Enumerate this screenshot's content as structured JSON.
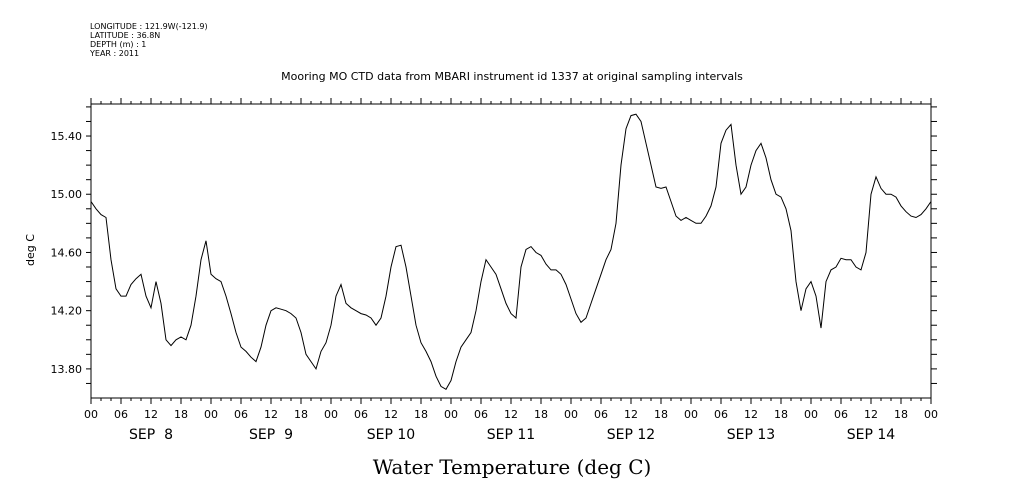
{
  "metadata": {
    "longitude": "LONGITUDE : 121.9W(-121.9)",
    "latitude": "LATITUDE : 36.8N",
    "depth": "DEPTH (m) : 1",
    "year": "YEAR : 2011"
  },
  "chart_data": {
    "type": "line",
    "title": "Mooring MO CTD data from MBARI instrument id 1337 at original sampling intervals",
    "xlabel": "Water Temperature (deg C)",
    "ylabel": "deg C",
    "xlim_hours": [
      0,
      168
    ],
    "ylim": [
      13.6,
      15.62
    ],
    "yticks": [
      13.8,
      14.2,
      14.6,
      15.0,
      15.4
    ],
    "ytick_labels": [
      "13.80",
      "14.20",
      "14.60",
      "15.00",
      "15.40"
    ],
    "hour_ticks": [
      "00",
      "06",
      "12",
      "18",
      "00",
      "06",
      "12",
      "18",
      "00",
      "06",
      "12",
      "18",
      "00",
      "06",
      "12",
      "18",
      "00",
      "06",
      "12",
      "18",
      "00",
      "06",
      "12",
      "18",
      "00",
      "06",
      "12",
      "18",
      "00"
    ],
    "day_labels": [
      "SEP  8",
      "SEP  9",
      "SEP 10",
      "SEP 11",
      "SEP 12",
      "SEP 13",
      "SEP 14"
    ],
    "series": [
      {
        "x": [
          0,
          1,
          2,
          3,
          4,
          5,
          6,
          7,
          8,
          9,
          10,
          11,
          12,
          13,
          14,
          15,
          16,
          17,
          18,
          19,
          20,
          21,
          22,
          23,
          24,
          25,
          26,
          27,
          28,
          29,
          30,
          31,
          32,
          33,
          34,
          35,
          36,
          37,
          38,
          39,
          40,
          41,
          42,
          43,
          44,
          45,
          46,
          47,
          48,
          49,
          50,
          51,
          52,
          53,
          54,
          55,
          56,
          57,
          58,
          59,
          60,
          61,
          62,
          63,
          64,
          65,
          66,
          67,
          68,
          69,
          70,
          71,
          72,
          73,
          74,
          75,
          76,
          77,
          78,
          79,
          80,
          81,
          82,
          83,
          84,
          85,
          86,
          87,
          88,
          89,
          90,
          91,
          92,
          93,
          94,
          95,
          96,
          97,
          98,
          99,
          100,
          101,
          102,
          103,
          104,
          105,
          106,
          107,
          108,
          109,
          110,
          111,
          112,
          113,
          114,
          115,
          116,
          117,
          118,
          119,
          120,
          121,
          122,
          123,
          124,
          125,
          126,
          127,
          128,
          129,
          130,
          131,
          132,
          133,
          134,
          135,
          136,
          137,
          138,
          139,
          140,
          141,
          142,
          143,
          144,
          145,
          146,
          147,
          148,
          149,
          150,
          151,
          152,
          153,
          154,
          155,
          156,
          157,
          158,
          159,
          160,
          161,
          162,
          163,
          164,
          165,
          166,
          167,
          168
        ],
        "y": [
          14.95,
          14.9,
          14.86,
          14.84,
          14.55,
          14.35,
          14.3,
          14.3,
          14.38,
          14.42,
          14.45,
          14.3,
          14.22,
          14.4,
          14.25,
          14.0,
          13.96,
          14.0,
          14.02,
          14.0,
          14.1,
          14.3,
          14.55,
          14.68,
          14.45,
          14.42,
          14.4,
          14.3,
          14.18,
          14.05,
          13.95,
          13.92,
          13.88,
          13.85,
          13.95,
          14.1,
          14.2,
          14.22,
          14.21,
          14.2,
          14.18,
          14.15,
          14.05,
          13.9,
          13.85,
          13.8,
          13.92,
          13.98,
          14.1,
          14.3,
          14.38,
          14.25,
          14.22,
          14.2,
          14.18,
          14.17,
          14.15,
          14.1,
          14.15,
          14.3,
          14.5,
          14.64,
          14.65,
          14.5,
          14.3,
          14.1,
          13.98,
          13.92,
          13.85,
          13.75,
          13.68,
          13.66,
          13.72,
          13.85,
          13.95,
          14.0,
          14.05,
          14.2,
          14.4,
          14.55,
          14.5,
          14.45,
          14.35,
          14.25,
          14.18,
          14.15,
          14.5,
          14.62,
          14.64,
          14.6,
          14.58,
          14.52,
          14.48,
          14.48,
          14.45,
          14.38,
          14.28,
          14.18,
          14.12,
          14.15,
          14.25,
          14.35,
          14.45,
          14.55,
          14.62,
          14.8,
          15.2,
          15.45,
          15.54,
          15.55,
          15.5,
          15.35,
          15.2,
          15.05,
          15.04,
          15.05,
          14.95,
          14.85,
          14.82,
          14.84,
          14.82,
          14.8,
          14.8,
          14.85,
          14.92,
          15.05,
          15.35,
          15.44,
          15.48,
          15.2,
          15.0,
          15.05,
          15.2,
          15.3,
          15.35,
          15.25,
          15.1,
          15.0,
          14.98,
          14.9,
          14.75,
          14.4,
          14.2,
          14.35,
          14.4,
          14.3,
          14.08,
          14.4,
          14.48,
          14.5,
          14.56,
          14.55,
          14.55,
          14.5,
          14.48,
          14.6,
          15.0,
          15.12,
          15.04,
          15.0,
          15.0,
          14.98,
          14.92,
          14.88,
          14.85,
          14.84,
          14.86,
          14.9,
          14.95
        ]
      }
    ],
    "line_color": "#000000"
  }
}
